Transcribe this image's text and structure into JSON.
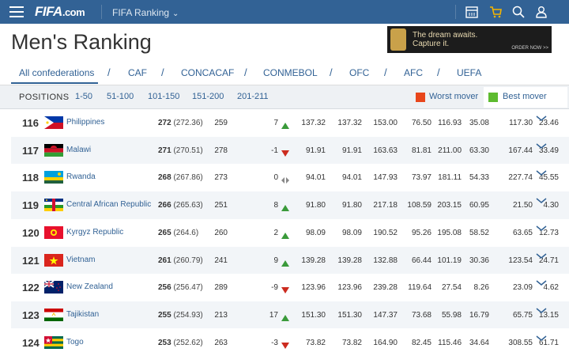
{
  "nav": {
    "logo": "FIFA",
    "logo_suffix": ".com",
    "section": "FIFA Ranking"
  },
  "page": {
    "title": "Men's Ranking"
  },
  "ad": {
    "line1": "The dream awaits.",
    "line2": "Capture it.",
    "cta": "ORDER NOW >>"
  },
  "tabs": [
    "All confederations",
    "CAF",
    "CONCACAF",
    "CONMEBOL",
    "OFC",
    "AFC",
    "UEFA"
  ],
  "positions": {
    "label": "POSITIONS",
    "ranges": [
      "1-50",
      "51-100",
      "101-150",
      "151-200",
      "201-211"
    ]
  },
  "legend": {
    "worst": {
      "label": "Worst mover",
      "color": "#e8461b"
    },
    "best": {
      "label": "Best mover",
      "color": "#5dbb2f"
    }
  },
  "rows": [
    {
      "rank": "116",
      "country": "Philippines",
      "flag": "philippines",
      "points": "272",
      "points_exact": "(272.36)",
      "prev": "259",
      "move": "7",
      "trend": "up",
      "c1": "137.32",
      "c2": "137.32",
      "c3": "153.00",
      "c4": "76.50",
      "c5": "116.93",
      "c6": "35.08",
      "c7": "117.30",
      "c8": "23.46"
    },
    {
      "rank": "117",
      "country": "Malawi",
      "flag": "malawi",
      "points": "271",
      "points_exact": "(270.51)",
      "prev": "278",
      "move": "-1",
      "trend": "down",
      "c1": "91.91",
      "c2": "91.91",
      "c3": "163.63",
      "c4": "81.81",
      "c5": "211.00",
      "c6": "63.30",
      "c7": "167.44",
      "c8": "33.49"
    },
    {
      "rank": "118",
      "country": "Rwanda",
      "flag": "rwanda",
      "points": "268",
      "points_exact": "(267.86)",
      "prev": "273",
      "move": "0",
      "trend": "same",
      "c1": "94.01",
      "c2": "94.01",
      "c3": "147.93",
      "c4": "73.97",
      "c5": "181.11",
      "c6": "54.33",
      "c7": "227.74",
      "c8": "45.55"
    },
    {
      "rank": "119",
      "country": "Central African Republic",
      "flag": "car",
      "points": "266",
      "points_exact": "(265.63)",
      "prev": "251",
      "move": "8",
      "trend": "up",
      "c1": "91.80",
      "c2": "91.80",
      "c3": "217.18",
      "c4": "108.59",
      "c5": "203.15",
      "c6": "60.95",
      "c7": "21.50",
      "c8": "4.30"
    },
    {
      "rank": "120",
      "country": "Kyrgyz Republic",
      "flag": "kyrgyz",
      "points": "265",
      "points_exact": "(264.6)",
      "prev": "260",
      "move": "2",
      "trend": "up",
      "c1": "98.09",
      "c2": "98.09",
      "c3": "190.52",
      "c4": "95.26",
      "c5": "195.08",
      "c6": "58.52",
      "c7": "63.65",
      "c8": "12.73"
    },
    {
      "rank": "121",
      "country": "Vietnam",
      "flag": "vietnam",
      "points": "261",
      "points_exact": "(260.79)",
      "prev": "241",
      "move": "9",
      "trend": "up",
      "c1": "139.28",
      "c2": "139.28",
      "c3": "132.88",
      "c4": "66.44",
      "c5": "101.19",
      "c6": "30.36",
      "c7": "123.54",
      "c8": "24.71"
    },
    {
      "rank": "122",
      "country": "New Zealand",
      "flag": "newzealand",
      "points": "256",
      "points_exact": "(256.47)",
      "prev": "289",
      "move": "-9",
      "trend": "down",
      "c1": "123.96",
      "c2": "123.96",
      "c3": "239.28",
      "c4": "119.64",
      "c5": "27.54",
      "c6": "8.26",
      "c7": "23.09",
      "c8": "4.62"
    },
    {
      "rank": "123",
      "country": "Tajikistan",
      "flag": "tajikistan",
      "points": "255",
      "points_exact": "(254.93)",
      "prev": "213",
      "move": "17",
      "trend": "up",
      "c1": "151.30",
      "c2": "151.30",
      "c3": "147.37",
      "c4": "73.68",
      "c5": "55.98",
      "c6": "16.79",
      "c7": "65.75",
      "c8": "13.15"
    },
    {
      "rank": "124",
      "country": "Togo",
      "flag": "togo",
      "points": "253",
      "points_exact": "(252.62)",
      "prev": "263",
      "move": "-3",
      "trend": "down",
      "c1": "73.82",
      "c2": "73.82",
      "c3": "164.90",
      "c4": "82.45",
      "c5": "115.46",
      "c6": "34.64",
      "c7": "308.55",
      "c8": "61.71"
    }
  ],
  "colors": {
    "brand": "#326295",
    "up": "#3a9a3a",
    "down": "#cc2b1f",
    "same": "#888888"
  }
}
